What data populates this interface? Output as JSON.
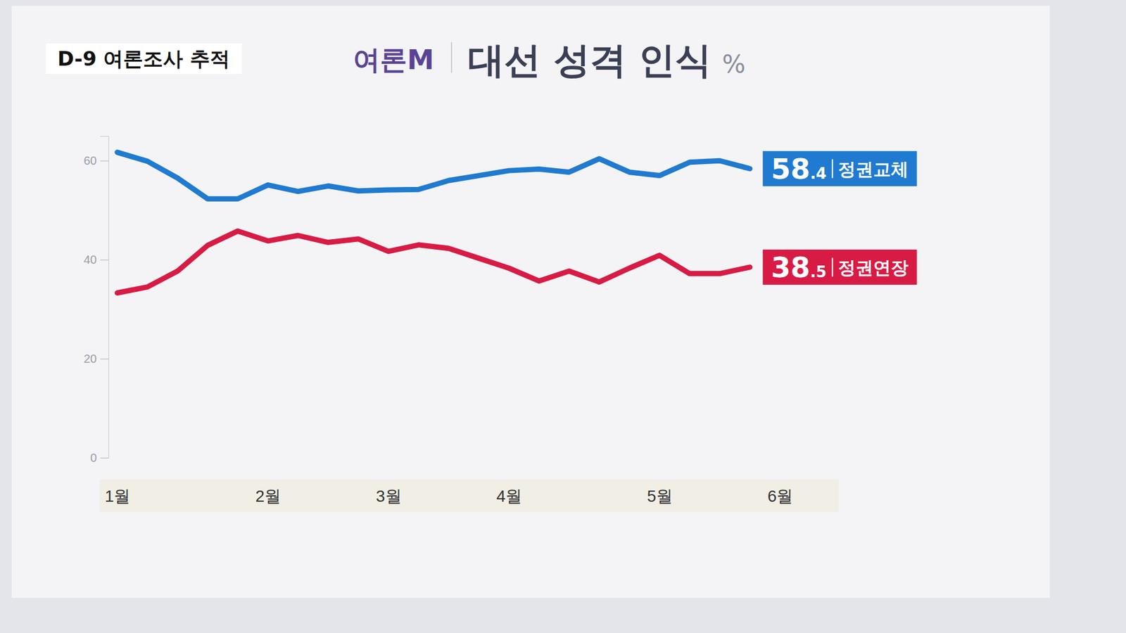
{
  "chart_data": {
    "type": "line",
    "title": "대선 성격 인식",
    "ylabel": "%",
    "annotations": [
      {
        "text": "D-9 여론조사 추적"
      },
      {
        "text": "여론M"
      }
    ],
    "categories": [
      "1월",
      null,
      null,
      null,
      null,
      "2월",
      null,
      null,
      null,
      "3월",
      null,
      null,
      null,
      "4월",
      null,
      null,
      null,
      null,
      "5월",
      null,
      null,
      null,
      "6월"
    ],
    "series": [
      {
        "name": "정권교체",
        "color": "#1f7ad0",
        "values": [
          61.7,
          59.9,
          56.5,
          52.3,
          52.3,
          55.1,
          53.8,
          54.9,
          53.9,
          54.1,
          54.2,
          56.0,
          57.0,
          58.0,
          58.3,
          57.7,
          60.4,
          57.7,
          57.0,
          59.7,
          60.0,
          58.4,
          null
        ],
        "value_labels": [
          null,
          null,
          null,
          null,
          null,
          null,
          null,
          null,
          null,
          null,
          null,
          null,
          null,
          null,
          null,
          null,
          null,
          null,
          null,
          null,
          null,
          "58.4",
          null
        ]
      },
      {
        "name": "정권연장",
        "color": "#d81b44",
        "values": [
          33.3,
          34.5,
          37.7,
          42.9,
          45.8,
          43.8,
          44.9,
          43.5,
          44.2,
          41.7,
          43.0,
          42.3,
          40.3,
          38.3,
          35.7,
          37.7,
          35.5,
          38.3,
          40.9,
          37.2,
          37.2,
          38.5,
          null
        ],
        "value_labels": [
          null,
          null,
          null,
          null,
          null,
          null,
          null,
          null,
          null,
          null,
          null,
          null,
          null,
          null,
          null,
          null,
          null,
          null,
          null,
          null,
          null,
          "38.5",
          null
        ]
      }
    ],
    "ylim": [
      0,
      65
    ],
    "yticks": [
      0,
      20,
      40,
      60
    ],
    "grid": false,
    "data_labels": true
  }
}
